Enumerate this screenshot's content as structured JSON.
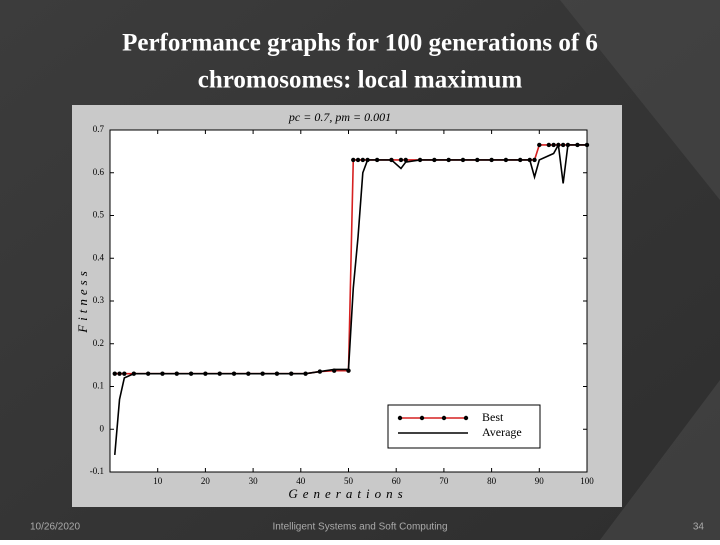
{
  "slide": {
    "title_lines": [
      "Performance graphs for 100 generations of 6",
      "chromosomes: local maximum"
    ],
    "footer": {
      "date": "10/26/2020",
      "course": "Intelligent Systems and Soft Computing",
      "page": "34"
    }
  },
  "chart_data": {
    "type": "line",
    "title": "pc = 0.7,  pm = 0.001",
    "x_label": "Generations",
    "y_label": "Fitness",
    "x": [
      1,
      2,
      3,
      5,
      8,
      11,
      14,
      17,
      20,
      23,
      26,
      29,
      32,
      35,
      38,
      41,
      44,
      47,
      50,
      51,
      52,
      53,
      54,
      56,
      59,
      61,
      62,
      65,
      68,
      71,
      74,
      77,
      80,
      83,
      86,
      88,
      89,
      90,
      92,
      93,
      94,
      95,
      96,
      98,
      100
    ],
    "series": [
      {
        "name": "Best",
        "color": "#d62020",
        "markers": true,
        "values": [
          0.13,
          0.13,
          0.13,
          0.13,
          0.13,
          0.13,
          0.13,
          0.13,
          0.13,
          0.13,
          0.13,
          0.13,
          0.13,
          0.13,
          0.13,
          0.13,
          0.135,
          0.137,
          0.137,
          0.63,
          0.63,
          0.63,
          0.63,
          0.63,
          0.63,
          0.63,
          0.63,
          0.63,
          0.63,
          0.63,
          0.63,
          0.63,
          0.63,
          0.63,
          0.63,
          0.63,
          0.63,
          0.665,
          0.665,
          0.665,
          0.665,
          0.665,
          0.665,
          0.665,
          0.665
        ]
      },
      {
        "name": "Average",
        "color": "#000000",
        "markers": false,
        "values": [
          -0.06,
          0.07,
          0.12,
          0.13,
          0.13,
          0.13,
          0.13,
          0.13,
          0.13,
          0.13,
          0.13,
          0.13,
          0.13,
          0.13,
          0.13,
          0.13,
          0.135,
          0.14,
          0.14,
          0.33,
          0.45,
          0.6,
          0.63,
          0.63,
          0.63,
          0.61,
          0.625,
          0.63,
          0.63,
          0.63,
          0.63,
          0.63,
          0.63,
          0.63,
          0.63,
          0.63,
          0.59,
          0.63,
          0.64,
          0.645,
          0.665,
          0.575,
          0.665,
          0.665,
          0.665
        ]
      }
    ],
    "xlim": [
      0,
      100
    ],
    "xticks": [
      10,
      20,
      30,
      40,
      50,
      60,
      70,
      80,
      90,
      100
    ],
    "ylim": [
      -0.1,
      0.7
    ],
    "yticks": [
      -0.1,
      0,
      0.1,
      0.2,
      0.3,
      0.4,
      0.5,
      0.6,
      0.7
    ],
    "legend": "lower-right"
  }
}
